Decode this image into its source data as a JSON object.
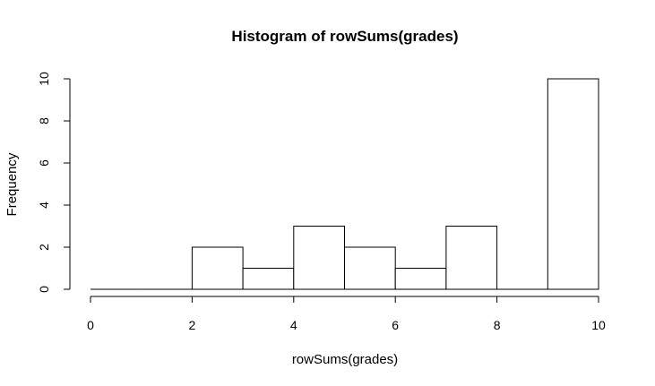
{
  "chart_data": {
    "type": "bar",
    "title": "Histogram of rowSums(grades)",
    "xlabel": "rowSums(grades)",
    "ylabel": "Frequency",
    "bins": [
      {
        "x0": 0,
        "x1": 1,
        "count": 0
      },
      {
        "x0": 1,
        "x1": 2,
        "count": 0
      },
      {
        "x0": 2,
        "x1": 3,
        "count": 2
      },
      {
        "x0": 3,
        "x1": 4,
        "count": 1
      },
      {
        "x0": 4,
        "x1": 5,
        "count": 3
      },
      {
        "x0": 5,
        "x1": 6,
        "count": 2
      },
      {
        "x0": 6,
        "x1": 7,
        "count": 1
      },
      {
        "x0": 7,
        "x1": 8,
        "count": 3
      },
      {
        "x0": 8,
        "x1": 9,
        "count": 0
      },
      {
        "x0": 9,
        "x1": 10,
        "count": 10
      }
    ],
    "xlim": [
      0,
      10
    ],
    "ylim": [
      0,
      10
    ],
    "xticks": [
      "0",
      "2",
      "4",
      "6",
      "8",
      "10"
    ],
    "yticks": [
      "0",
      "2",
      "4",
      "6",
      "8",
      "10"
    ],
    "grid": false,
    "legend": "none",
    "colors": {
      "bar_fill": "#ffffff",
      "bar_stroke": "#000000"
    }
  }
}
